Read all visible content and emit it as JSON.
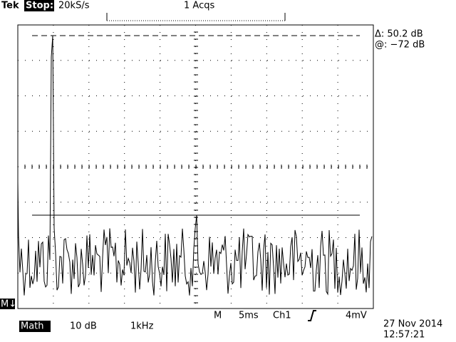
{
  "header": {
    "brand": "Tek",
    "state": "Stop:",
    "sample_rate": "20kS/s",
    "acquisitions": "1 Acqs"
  },
  "cursor_readout": {
    "delta": "Δ: 50.2 dB",
    "at": "@: −72 dB"
  },
  "left_marker": "M↓",
  "timebase": {
    "label": "M",
    "scale": "5ms",
    "source": "Ch1",
    "trigger_level": "4mV"
  },
  "math": {
    "label": "Math",
    "scale": "10 dB",
    "span": "1kHz"
  },
  "timestamp": {
    "date": "27 Nov 2014",
    "time": "12:57:21"
  }
}
